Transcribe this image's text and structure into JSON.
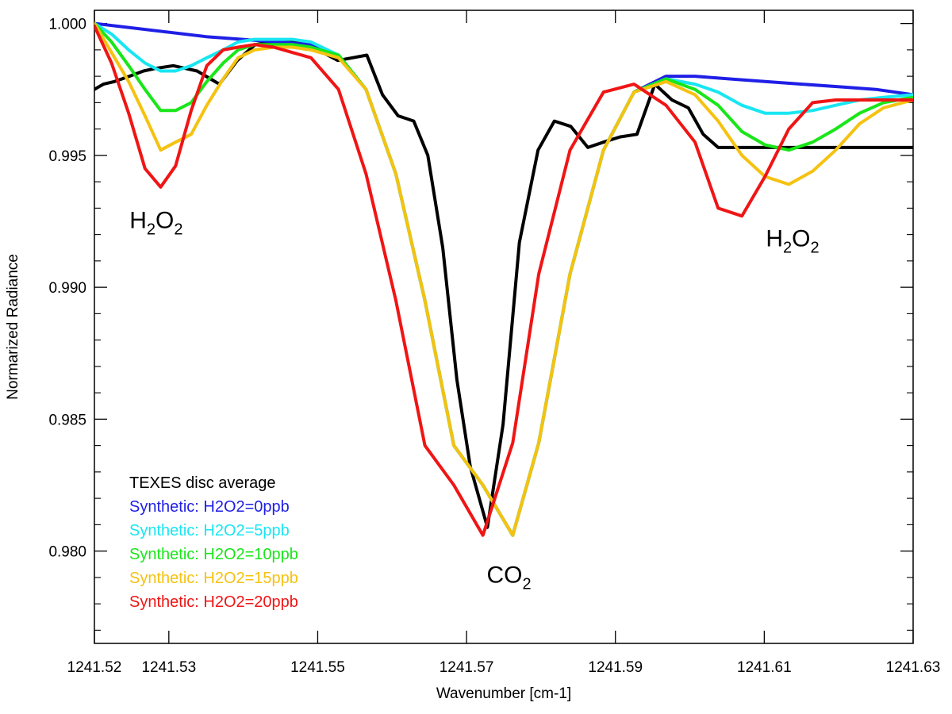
{
  "chart_data": {
    "type": "line",
    "title": "",
    "xlabel": "Wavenumber [cm-1]",
    "ylabel": "Normarized Radiance",
    "xlim": [
      1241.52,
      1241.63
    ],
    "ylim": [
      0.9765,
      1.0005
    ],
    "x_tick_values": [
      1241.52,
      1241.53,
      1241.55,
      1241.57,
      1241.59,
      1241.61,
      1241.63
    ],
    "x_tick_labels": [
      "1241.52",
      "1241.53",
      "1241.55",
      "1241.57",
      "1241.59",
      "1241.61",
      "1241.63"
    ],
    "y_tick_values": [
      0.98,
      0.985,
      0.99,
      0.995,
      1.0
    ],
    "y_tick_labels": [
      "0.980",
      "0.985",
      "0.990",
      "0.995",
      "1.000"
    ],
    "y_minor_tick_values": [
      0.977,
      0.978,
      0.979,
      0.981,
      0.982,
      0.983,
      0.984,
      0.986,
      0.987,
      0.988,
      0.989,
      0.991,
      0.992,
      0.993,
      0.994,
      0.996,
      0.997,
      0.998,
      0.999
    ],
    "legend_position": "bottom-left",
    "series": [
      {
        "name": "TEXES disc average",
        "color": "#000000",
        "x": [
          1241.52,
          1241.5212,
          1241.5227,
          1241.5247,
          1241.5266,
          1241.5283,
          1241.5306,
          1241.5338,
          1241.5368,
          1241.5392,
          1241.5416,
          1241.5439,
          1241.5463,
          1241.5486,
          1241.5507,
          1241.5527,
          1241.5547,
          1241.5566,
          1241.5587,
          1241.5608,
          1241.5629,
          1241.5648,
          1241.5668,
          1241.5687,
          1241.5705,
          1241.5728,
          1241.5749,
          1241.5771,
          1241.5796,
          1241.5818,
          1241.584,
          1241.5863,
          1241.5884,
          1241.5906,
          1241.5929,
          1241.5953,
          1241.5976,
          1241.5998,
          1241.6018,
          1241.6038,
          1241.6058,
          1241.6079,
          1241.6096,
          1241.6117,
          1241.6138,
          1241.6155,
          1241.6177,
          1241.6203,
          1241.623,
          1241.6255,
          1241.6278,
          1241.63
        ],
        "values": [
          0.9975,
          0.9977,
          0.9978,
          0.998,
          0.9982,
          0.9983,
          0.9984,
          0.9982,
          0.9977,
          0.9986,
          0.9992,
          0.9993,
          0.9993,
          0.9992,
          0.9989,
          0.9986,
          0.9987,
          0.9988,
          0.9973,
          0.9965,
          0.9963,
          0.995,
          0.9915,
          0.9865,
          0.9832,
          0.9809,
          0.9848,
          0.9917,
          0.9952,
          0.9963,
          0.9961,
          0.9953,
          0.9955,
          0.9957,
          0.9958,
          0.9977,
          0.9971,
          0.9968,
          0.9958,
          0.9953,
          0.9953,
          0.9953,
          0.9953,
          0.9953,
          0.9953,
          0.9953,
          0.9953,
          0.9953,
          0.9953,
          0.9953,
          0.9953,
          0.9953
        ]
      },
      {
        "name": "Synthetic: H2O2=0ppb",
        "color": "#1f1fe6",
        "x": [
          1241.52,
          1241.535,
          1241.5446,
          1241.5491,
          1241.5528,
          1241.5565,
          1241.5605,
          1241.5644,
          1241.5683,
          1241.5722,
          1241.5762,
          1241.5797,
          1241.5839,
          1241.5884,
          1241.5925,
          1241.5968,
          1241.6007,
          1241.6052,
          1241.6101,
          1241.6151,
          1241.6201,
          1241.625,
          1241.63
        ],
        "values": [
          1.0,
          0.9995,
          0.9993,
          0.9992,
          0.9988,
          0.9975,
          0.9943,
          0.9895,
          0.984,
          0.9825,
          0.9806,
          0.9841,
          0.9905,
          0.9952,
          0.9974,
          0.998,
          0.998,
          0.9979,
          0.9978,
          0.9977,
          0.9976,
          0.9975,
          0.9973
        ]
      },
      {
        "name": "Synthetic: H2O2=5ppb",
        "color": "#19e6f2",
        "x": [
          1241.52,
          1241.5223,
          1241.5246,
          1241.5268,
          1241.5289,
          1241.5309,
          1241.533,
          1241.5351,
          1241.5373,
          1241.5393,
          1241.5415,
          1241.5441,
          1241.5466,
          1241.5491,
          1241.5528,
          1241.5565,
          1241.5605,
          1241.5644,
          1241.5683,
          1241.5722,
          1241.5762,
          1241.5797,
          1241.5839,
          1241.5884,
          1241.5925,
          1241.5968,
          1241.6007,
          1241.6038,
          1241.607,
          1241.6101,
          1241.6133,
          1241.6165,
          1241.6196,
          1241.6228,
          1241.626,
          1241.63
        ],
        "values": [
          1.0,
          0.9996,
          0.999,
          0.9985,
          0.9982,
          0.9982,
          0.9984,
          0.9987,
          0.999,
          0.9993,
          0.9994,
          0.9994,
          0.9994,
          0.9993,
          0.9988,
          0.9975,
          0.9943,
          0.9895,
          0.984,
          0.9825,
          0.9806,
          0.9841,
          0.9905,
          0.9952,
          0.9974,
          0.9979,
          0.9977,
          0.9974,
          0.9969,
          0.9966,
          0.9966,
          0.9967,
          0.9969,
          0.9971,
          0.9972,
          0.9973
        ]
      },
      {
        "name": "Synthetic: H2O2=10ppb",
        "color": "#19e619",
        "x": [
          1241.52,
          1241.5223,
          1241.5246,
          1241.5268,
          1241.5289,
          1241.5309,
          1241.533,
          1241.5351,
          1241.5373,
          1241.5393,
          1241.5415,
          1241.5441,
          1241.5466,
          1241.5491,
          1241.5528,
          1241.5565,
          1241.5605,
          1241.5644,
          1241.5683,
          1241.5722,
          1241.5762,
          1241.5797,
          1241.5839,
          1241.5884,
          1241.5925,
          1241.5968,
          1241.6007,
          1241.6038,
          1241.607,
          1241.6101,
          1241.6133,
          1241.6165,
          1241.6196,
          1241.6228,
          1241.626,
          1241.63
        ],
        "values": [
          1.0,
          0.9993,
          0.9984,
          0.9975,
          0.9967,
          0.9967,
          0.997,
          0.9978,
          0.9985,
          0.999,
          0.9992,
          0.9992,
          0.9992,
          0.9991,
          0.9988,
          0.9975,
          0.9943,
          0.9895,
          0.984,
          0.9825,
          0.9806,
          0.9841,
          0.9905,
          0.9952,
          0.9974,
          0.9979,
          0.9975,
          0.9969,
          0.9959,
          0.9954,
          0.9952,
          0.9955,
          0.996,
          0.9966,
          0.997,
          0.9972
        ]
      },
      {
        "name": "Synthetic: H2O2=15ppb",
        "color": "#f5c211",
        "x": [
          1241.52,
          1241.5223,
          1241.5246,
          1241.5268,
          1241.5289,
          1241.5309,
          1241.533,
          1241.5351,
          1241.5373,
          1241.5393,
          1241.5415,
          1241.5441,
          1241.5466,
          1241.5491,
          1241.5528,
          1241.5565,
          1241.5605,
          1241.5644,
          1241.5683,
          1241.5722,
          1241.5762,
          1241.5797,
          1241.5839,
          1241.5884,
          1241.5925,
          1241.5968,
          1241.6007,
          1241.6038,
          1241.607,
          1241.6101,
          1241.6133,
          1241.6165,
          1241.6196,
          1241.6228,
          1241.626,
          1241.63
        ],
        "values": [
          1.0,
          0.9989,
          0.9978,
          0.9965,
          0.9952,
          0.9955,
          0.9958,
          0.9969,
          0.9979,
          0.9987,
          0.999,
          0.9991,
          0.9991,
          0.999,
          0.9987,
          0.9975,
          0.9943,
          0.9895,
          0.984,
          0.9825,
          0.9806,
          0.9841,
          0.9905,
          0.9952,
          0.9974,
          0.9978,
          0.9973,
          0.9963,
          0.995,
          0.9942,
          0.9939,
          0.9944,
          0.9952,
          0.9962,
          0.9968,
          0.9971
        ]
      },
      {
        "name": "Synthetic: H2O2=20ppb",
        "color": "#f01515",
        "x": [
          1241.52,
          1241.5223,
          1241.5246,
          1241.5268,
          1241.5289,
          1241.5309,
          1241.533,
          1241.5351,
          1241.5373,
          1241.5393,
          1241.5415,
          1241.5441,
          1241.5466,
          1241.5491,
          1241.5528,
          1241.5565,
          1241.5605,
          1241.5644,
          1241.5683,
          1241.5722,
          1241.5762,
          1241.5797,
          1241.5839,
          1241.5884,
          1241.5925,
          1241.5968,
          1241.6007,
          1241.6038,
          1241.607,
          1241.6101,
          1241.6133,
          1241.6165,
          1241.6196,
          1241.6228,
          1241.626,
          1241.63
        ],
        "values": [
          0.9999,
          0.9985,
          0.9966,
          0.9945,
          0.9938,
          0.9946,
          0.9967,
          0.9984,
          0.999,
          0.9991,
          0.9992,
          0.9991,
          0.9989,
          0.9987,
          0.9975,
          0.9943,
          0.9895,
          0.984,
          0.9825,
          0.9806,
          0.9841,
          0.9905,
          0.9952,
          0.9974,
          0.9977,
          0.9969,
          0.9955,
          0.993,
          0.9927,
          0.9942,
          0.996,
          0.997,
          0.9971,
          0.9971,
          0.9971,
          0.9971
        ]
      }
    ],
    "annotations": [
      {
        "name": "h2o2-left",
        "base": "H",
        "sub1": "2",
        "mid": "O",
        "sub2": "2",
        "x": 1241.5283,
        "y": 0.99225
      },
      {
        "name": "h2o2-right",
        "base": "H",
        "sub1": "2",
        "mid": "O",
        "sub2": "2",
        "x": 1241.6138,
        "y": 0.99155
      },
      {
        "name": "co2",
        "base": "CO",
        "sub1": "2",
        "mid": "",
        "sub2": "",
        "x": 1241.5757,
        "y": 0.9788
      }
    ]
  }
}
